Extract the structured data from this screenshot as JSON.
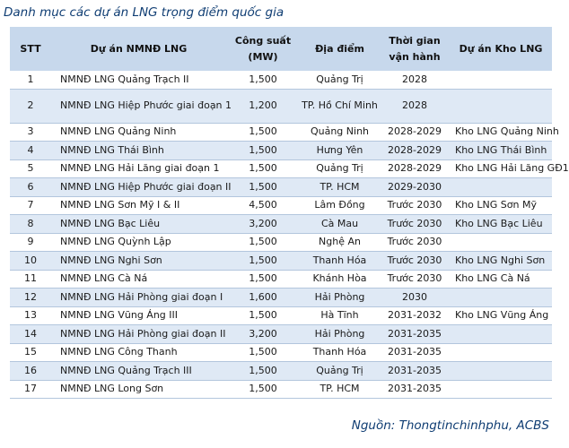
{
  "title": "Danh mục các dự án LNG trọng điểm quốc gia",
  "headers": {
    "stt": "STT",
    "name": "Dự án NMNĐ LNG",
    "capacity": "Công suất (MW)",
    "location": "Địa điểm",
    "time": "Thời gian vận hành",
    "kho": "Dự án Kho LNG"
  },
  "rows": [
    {
      "stt": "1",
      "name": "NMNĐ LNG Quảng Trạch II",
      "capacity": "1,500",
      "location": "Quảng Trị",
      "time": "2028",
      "kho": ""
    },
    {
      "stt": "2",
      "name": "NMNĐ LNG Hiệp Phước giai đoạn 1",
      "capacity": "1,200",
      "location": "TP. Hồ Chí Minh",
      "time": "2028",
      "kho": ""
    },
    {
      "stt": "3",
      "name": "NMNĐ LNG Quảng Ninh",
      "capacity": "1,500",
      "location": "Quảng Ninh",
      "time": "2028-2029",
      "kho": "Kho LNG Quảng Ninh"
    },
    {
      "stt": "4",
      "name": "NMNĐ LNG Thái Bình",
      "capacity": "1,500",
      "location": "Hưng Yên",
      "time": "2028-2029",
      "kho": "Kho LNG Thái Bình"
    },
    {
      "stt": "5",
      "name": "NMNĐ LNG Hải Lăng giai đoạn 1",
      "capacity": "1,500",
      "location": "Quảng Trị",
      "time": "2028-2029",
      "kho": "Kho LNG Hải Lăng GĐ1"
    },
    {
      "stt": "6",
      "name": "NMNĐ LNG Hiệp Phước giai đoạn II",
      "capacity": "1,500",
      "location": "TP. HCM",
      "time": "2029-2030",
      "kho": ""
    },
    {
      "stt": "7",
      "name": "NMNĐ LNG Sơn Mỹ I & II",
      "capacity": "4,500",
      "location": "Lâm Đồng",
      "time": "Trước 2030",
      "kho": "Kho LNG Sơn Mỹ"
    },
    {
      "stt": "8",
      "name": "NMNĐ LNG Bạc Liêu",
      "capacity": "3,200",
      "location": "Cà Mau",
      "time": "Trước 2030",
      "kho": "Kho LNG Bạc Liêu"
    },
    {
      "stt": "9",
      "name": "NMNĐ LNG Quỳnh Lập",
      "capacity": "1,500",
      "location": "Nghệ An",
      "time": "Trước 2030",
      "kho": ""
    },
    {
      "stt": "10",
      "name": "NMNĐ LNG Nghi Sơn",
      "capacity": "1,500",
      "location": "Thanh Hóa",
      "time": "Trước 2030",
      "kho": "Kho LNG Nghi Sơn"
    },
    {
      "stt": "11",
      "name": "NMNĐ LNG Cà Ná",
      "capacity": "1,500",
      "location": "Khánh Hòa",
      "time": "Trước 2030",
      "kho": "Kho LNG Cà Ná"
    },
    {
      "stt": "12",
      "name": "NMNĐ LNG Hải Phòng giai đoạn I",
      "capacity": "1,600",
      "location": "Hải Phòng",
      "time": "2030",
      "kho": ""
    },
    {
      "stt": "13",
      "name": "NMNĐ LNG Vũng Áng III",
      "capacity": "1,500",
      "location": "Hà Tĩnh",
      "time": "2031-2032",
      "kho": "Kho LNG Vũng Áng"
    },
    {
      "stt": "14",
      "name": "NMNĐ LNG Hải Phòng giai đoạn II",
      "capacity": "3,200",
      "location": "Hải Phòng",
      "time": "2031-2035",
      "kho": ""
    },
    {
      "stt": "15",
      "name": "NMNĐ LNG Công Thanh",
      "capacity": "1,500",
      "location": "Thanh Hóa",
      "time": "2031-2035",
      "kho": ""
    },
    {
      "stt": "16",
      "name": "NMNĐ LNG Quảng Trạch III",
      "capacity": "1,500",
      "location": "Quảng Trị",
      "time": "2031-2035",
      "kho": ""
    },
    {
      "stt": "17",
      "name": "NMNĐ LNG Long Sơn",
      "capacity": "1,500",
      "location": "TP. HCM",
      "time": "2031-2035",
      "kho": ""
    }
  ],
  "source": "Nguồn: Thongtinchinhphu, ACBS",
  "colors": {
    "header_bg": "#c7d8ec",
    "stripe_bg": "#dfe9f5",
    "title_color": "#0f3d73"
  }
}
